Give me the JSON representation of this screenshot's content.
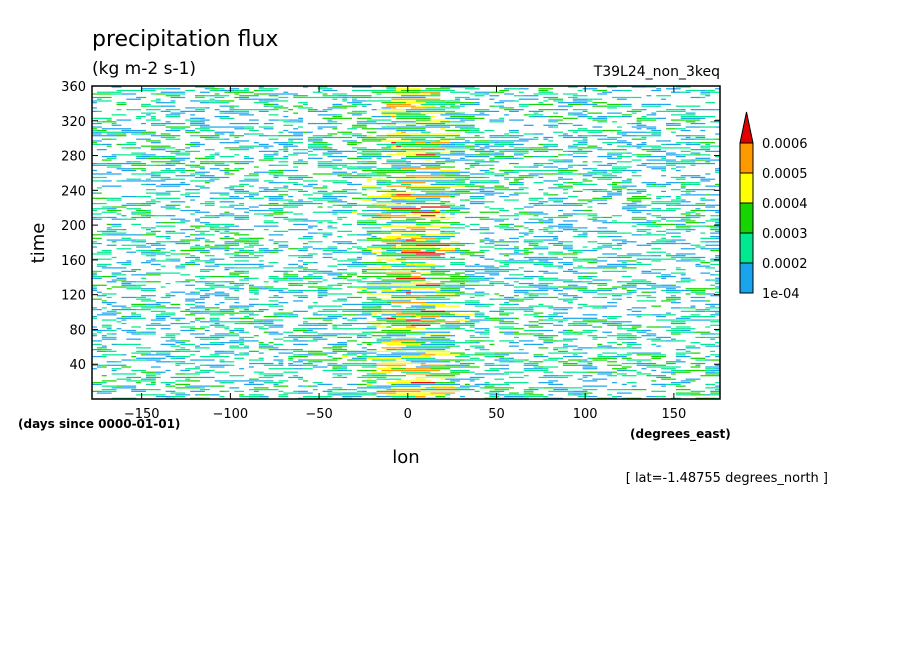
{
  "chart_data": {
    "type": "heatmap",
    "title": "precipitation flux",
    "units": "(kg m-2 s-1)",
    "run_name": "T39L24_non_3keq",
    "xlabel": "lon",
    "xunits": "(degrees_east)",
    "ylabel": "time",
    "yunits": "(days since 0000-01-01)",
    "slice_note": "[ lat=-1.48755 degrees_north ]",
    "xlim": [
      -178,
      176
    ],
    "ylim": [
      0,
      360
    ],
    "xticks": [
      -150,
      -100,
      -50,
      0,
      50,
      100,
      150
    ],
    "yticks": [
      40,
      80,
      120,
      160,
      200,
      240,
      280,
      320,
      360
    ],
    "colorbar": {
      "levels": [
        "1e-04",
        "0.0002",
        "0.0003",
        "0.0004",
        "0.0005",
        "0.0006"
      ],
      "colors": [
        "#19a4ec",
        "#00e890",
        "#16d400",
        "#ffff00",
        "#ff9900",
        "#e00000"
      ],
      "extend": "max"
    }
  }
}
